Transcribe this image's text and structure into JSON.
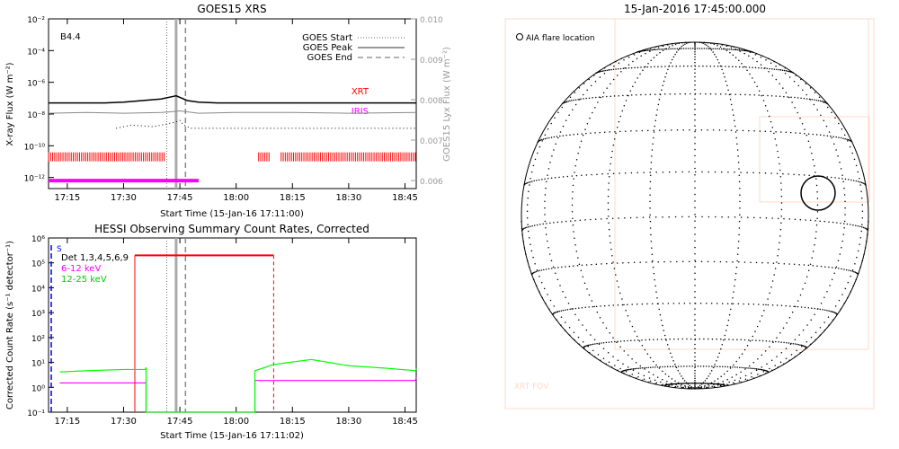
{
  "colors": {
    "xrt": "#ff0000",
    "iris": "#ff00ff",
    "hessi_det": "#ff0000",
    "band_6_12": "#ff00ff",
    "band_12_25": "#00ff00",
    "fov": "#ffd9c9",
    "axis": "#000000",
    "lya": "#999999"
  },
  "chart_data": [
    {
      "type": "line",
      "title": "GOES15 XRS",
      "annotation": "B4.4",
      "xlabel": "Start Time (15-Jan-16 17:11:00)",
      "ylabel": "X-ray Flux (W m⁻²)",
      "y2label": "GOES15 Lyx Flux (W m⁻²)",
      "x_ticks": [
        "17:15",
        "17:30",
        "17:45",
        "18:00",
        "18:15",
        "18:30",
        "18:45"
      ],
      "x_tick_minutes": [
        15,
        30,
        45,
        60,
        75,
        90,
        105
      ],
      "x_range_minutes": [
        10,
        108
      ],
      "y_scale": "log",
      "y_ticks": [
        "10⁻²",
        "10⁻⁴",
        "10⁻⁶",
        "10⁻⁸",
        "10⁻¹⁰",
        "10⁻¹²"
      ],
      "y_tick_exponents": [
        -2,
        -4,
        -6,
        -8,
        -10,
        -12
      ],
      "ylim_exponents": [
        -12.7,
        -2
      ],
      "y2_ticks": [
        "0.010",
        "0.009",
        "0.008",
        "0.007",
        "0.006"
      ],
      "y2_values": [
        0.01,
        0.009,
        0.008,
        0.007,
        0.006
      ],
      "y2lim": [
        0.0058,
        0.01
      ],
      "legend": [
        {
          "label": "GOES Start",
          "style": "dotted"
        },
        {
          "label": "GOES Peak",
          "style": "solid"
        },
        {
          "label": "GOES End",
          "style": "dashed"
        }
      ],
      "legend_position": "top-right",
      "event_lines_minutes": {
        "start": 41.5,
        "peak": 44.0,
        "end": 46.5
      },
      "series": [
        {
          "name": "XRT",
          "style": "solid",
          "x": [
            10,
            25,
            30,
            35,
            40,
            43,
            44,
            45,
            47,
            50,
            55,
            60,
            75,
            90,
            108
          ],
          "log_values": [
            -7.3,
            -7.3,
            -7.25,
            -7.15,
            -7.05,
            -6.9,
            -6.85,
            -6.95,
            -7.15,
            -7.25,
            -7.3,
            -7.3,
            -7.3,
            -7.3,
            -7.3
          ]
        },
        {
          "name": "IRIS",
          "style": "grey",
          "x": [
            10,
            20,
            30,
            40,
            43,
            45,
            50,
            60,
            75,
            90,
            108
          ],
          "log_values": [
            -7.95,
            -7.9,
            -7.95,
            -7.9,
            -7.85,
            -7.8,
            -7.95,
            -7.9,
            -7.9,
            -7.95,
            -7.9
          ]
        }
      ],
      "goes_low_channel_points": {
        "x": [
          28,
          32,
          38,
          44,
          45,
          46,
          48,
          55,
          65,
          80,
          95,
          108
        ],
        "log_values": [
          -8.9,
          -8.7,
          -8.8,
          -8.5,
          -8.4,
          -8.7,
          -8.9,
          -8.9,
          -8.9,
          -8.9,
          -8.9,
          -8.9
        ]
      },
      "xrt_ticks": {
        "log_value": -10.7,
        "segments_minutes": [
          [
            10,
            41
          ],
          [
            66,
            69
          ],
          [
            72,
            108
          ]
        ]
      },
      "iris_bar": {
        "log_value": -12.2,
        "minutes": [
          10,
          50
        ]
      }
    },
    {
      "type": "line",
      "title": "HESSI Observing Summary Count Rates, Corrected",
      "xlabel": "Start Time (15-Jan-16 17:11:02)",
      "ylabel": "Corrected Count Rate (s⁻¹ detector⁻¹)",
      "x_ticks": [
        "17:15",
        "17:30",
        "17:45",
        "18:00",
        "18:15",
        "18:30",
        "18:45"
      ],
      "x_tick_minutes": [
        15,
        30,
        45,
        60,
        75,
        90,
        105
      ],
      "x_range_minutes": [
        10,
        108
      ],
      "y_scale": "log",
      "y_ticks": [
        "10⁻¹",
        "10⁰",
        "10¹",
        "10²",
        "10³",
        "10⁴",
        "10⁵",
        "10⁶"
      ],
      "y_tick_exponents": [
        -1,
        0,
        1,
        2,
        3,
        4,
        5,
        6
      ],
      "ylim_exponents": [
        -1,
        6
      ],
      "legend": [
        {
          "label": "Det 1,3,4,5,6,9"
        },
        {
          "label": "6-12 keV"
        },
        {
          "label": "12-25 keV"
        }
      ],
      "legend_position": "top-left",
      "side_marker": "S",
      "event_lines_minutes": {
        "start": 41.5,
        "peak": 44.0,
        "end": 46.5
      },
      "detector_flag": {
        "start": 33,
        "end": 70,
        "log_value": 5.3
      },
      "series": [
        {
          "name": "6-12 keV",
          "x": [
            13,
            36,
            36,
            65,
            65,
            108
          ],
          "log_values": [
            0.3,
            0.3,
            -1,
            -1,
            0.4,
            0.4
          ]
        },
        {
          "name": "12-25 keV",
          "x": [
            13,
            20,
            30,
            36,
            36,
            65,
            65,
            70,
            80,
            90,
            100,
            108
          ],
          "log_values": [
            0.7,
            0.75,
            0.8,
            0.8,
            -1,
            -1,
            0.75,
            1.0,
            1.2,
            0.95,
            0.85,
            0.75
          ]
        }
      ]
    },
    {
      "type": "diagram",
      "title": "15-Jan-2016 17:45:00.000",
      "legend": [
        {
          "label": "AIA flare location",
          "marker": "circle"
        }
      ],
      "fov_label": "XRT FOV"
    }
  ]
}
